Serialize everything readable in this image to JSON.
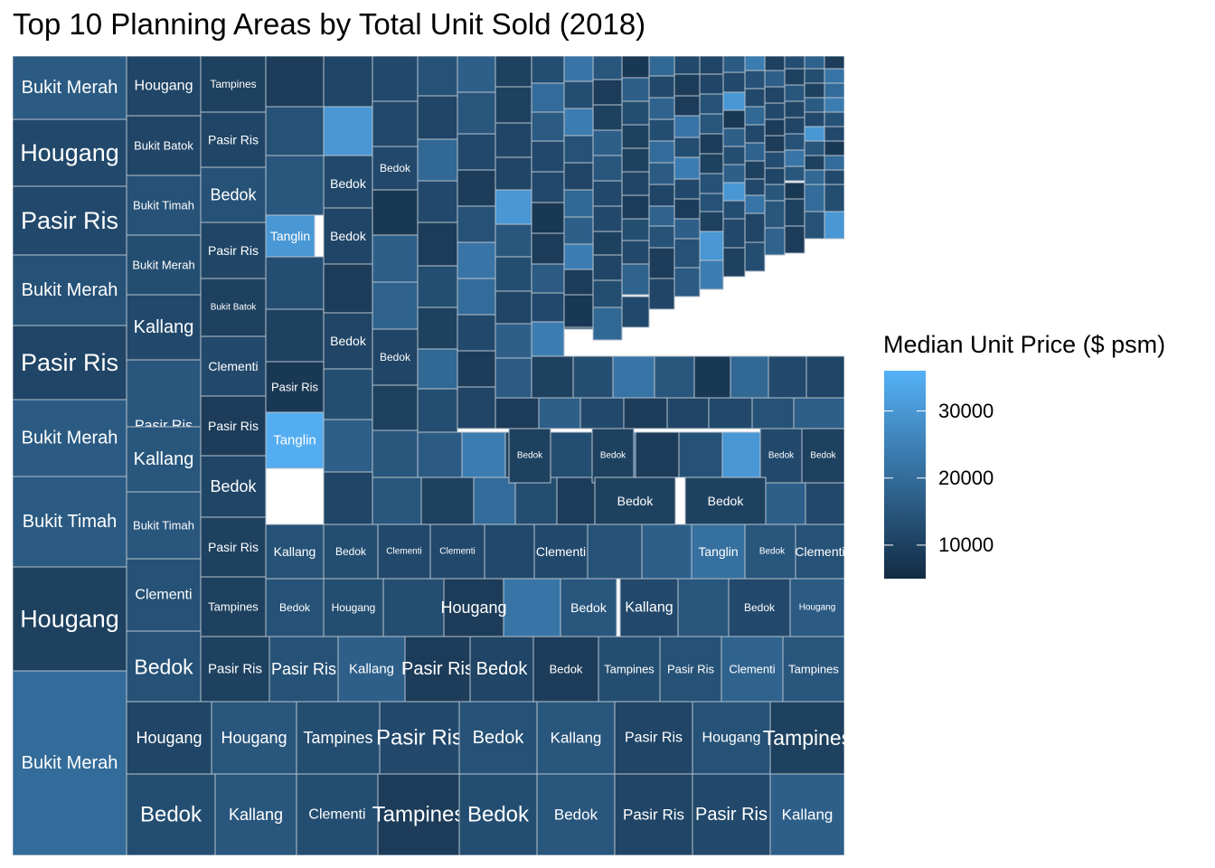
{
  "chart_data": {
    "type": "treemap",
    "title": "Top 10 Planning Areas by Total Unit Sold (2018)",
    "legend": {
      "title": "Median Unit Price ($ psm)",
      "ticks": [
        10000,
        20000,
        30000
      ],
      "range": [
        5000,
        36000
      ],
      "position": "right",
      "low_color": "#132b43",
      "high_color": "#56b1f7"
    },
    "categories": [
      "Bedok",
      "Bukit Batok",
      "Bukit Merah",
      "Bukit Timah",
      "Clementi",
      "Hougang",
      "Kallang",
      "Pasir Ris",
      "Tampines",
      "Tanglin"
    ],
    "labels": [
      "Bukit Merah",
      "Hougang",
      "Pasir Ris",
      "Bukit Merah",
      "Pasir Ris",
      "Bukit Merah",
      "Bukit Timah",
      "Hougang",
      "Bukit Merah",
      "Hougang",
      "Bukit Batok",
      "Bukit Timah",
      "Bukit Merah",
      "Kallang",
      "Pasir Ris",
      "Kallang",
      "Bukit Timah",
      "Clementi",
      "Bedok",
      "Tampines",
      "Pasir Ris",
      "Bedok",
      "Pasir Ris",
      "Bukit Batok",
      "Clementi",
      "Pasir Ris",
      "Bedok",
      "Pasir Ris",
      "Tampines",
      "Tanglin",
      "Bedok",
      "Bedok",
      "Bedok",
      "Bedok",
      "Bedok",
      "Pasir Ris",
      "Tanglin",
      "Kallang",
      "Bedok",
      "Bedok",
      "Bedok",
      "Bedok",
      "Bedok",
      "Bedok",
      "Bedok",
      "Bedok",
      "Clementi",
      "Clementi",
      "Clementi",
      "Tanglin",
      "Bedok",
      "Clementi",
      "Bedok",
      "Hougang",
      "Hougang",
      "Bedok",
      "Kallang",
      "Bedok",
      "Hougang",
      "Pasir Ris",
      "Pasir Ris",
      "Kallang",
      "Pasir Ris",
      "Bedok",
      "Bedok",
      "Tampines",
      "Pasir Ris",
      "Clementi",
      "Tampines",
      "Hougang",
      "Hougang",
      "Tampines",
      "Pasir Ris",
      "Bedok",
      "Kallang",
      "Pasir Ris",
      "Hougang",
      "Tampines",
      "Bedok",
      "Kallang",
      "Clementi",
      "Tampines",
      "Bedok",
      "Bedok",
      "Pasir Ris",
      "Pasir Ris",
      "Kallang",
      "Pasir Ris"
    ],
    "median_unit_price": [
      16000,
      12000,
      12000,
      14000,
      11000,
      16000,
      16000,
      10000,
      20000,
      11000,
      11000,
      14000,
      13000,
      12000,
      15000,
      15000,
      15000,
      14000,
      14000,
      10000,
      11000,
      14000,
      11000,
      10000,
      12000,
      9000,
      11000,
      10000,
      10000,
      35000,
      12000,
      11000,
      12000,
      11000,
      11000,
      8000,
      30000,
      14000,
      10000,
      10000,
      12000,
      10000,
      10000,
      10000,
      12000,
      13000,
      12000,
      12000,
      12000,
      21000,
      15000,
      14000,
      14000,
      13000,
      9000,
      15000,
      12000,
      12000,
      16000,
      10000,
      14000,
      17000,
      9000,
      11000,
      9000,
      13000,
      14000,
      18000,
      15000,
      11000,
      15000,
      13000,
      12000,
      14000,
      15000,
      11000,
      14000,
      10000,
      13000,
      15000,
      13000,
      9000,
      13000,
      15000,
      11000,
      12000,
      17000,
      11000
    ]
  }
}
